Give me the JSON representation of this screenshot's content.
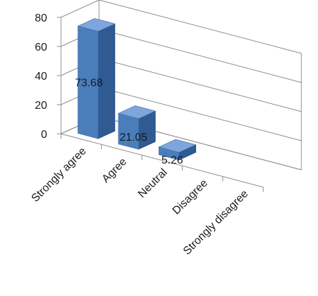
{
  "chart_data": {
    "type": "bar",
    "style": "3d-column",
    "categories": [
      "Strongly agree",
      "Agree",
      "Neutral",
      "Disagree",
      "Strongly disagree"
    ],
    "values": [
      73.68,
      21.05,
      5.26,
      0,
      0
    ],
    "data_labels": [
      "73.68",
      "21.05",
      "5.26",
      "",
      ""
    ],
    "y_ticks": [
      "0",
      "20",
      "40",
      "60",
      "80"
    ],
    "ylim": [
      0,
      80
    ],
    "grid": true,
    "legend": "none",
    "bar_color": "#4a7ebb",
    "bar_side_color": "#2f5a92",
    "bar_top_color": "#7ea6dc"
  }
}
